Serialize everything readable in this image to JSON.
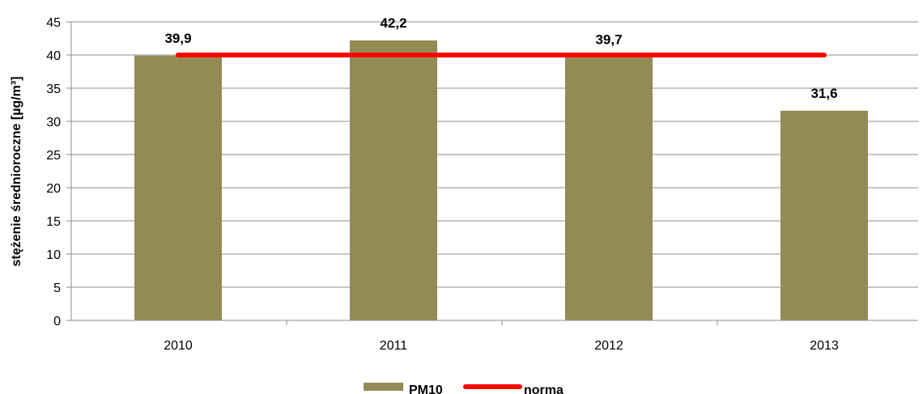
{
  "chart_data": {
    "type": "bar",
    "categories": [
      "2010",
      "2011",
      "2012",
      "2013"
    ],
    "series": [
      {
        "name": "PM10",
        "kind": "bar",
        "values": [
          39.9,
          42.2,
          39.7,
          31.6
        ],
        "color": "#948A54",
        "data_labels": [
          "39,9",
          "42,2",
          "39,7",
          "31,6"
        ]
      },
      {
        "name": "norma",
        "kind": "line",
        "values": [
          40,
          40,
          40,
          40
        ],
        "color": "#FF0000"
      }
    ],
    "ylabel": "stężenie średnioroczne [µg/m³]",
    "xlabel": "",
    "ylim": [
      0,
      45
    ],
    "yticks": [
      0,
      5,
      10,
      15,
      20,
      25,
      30,
      35,
      40,
      45
    ],
    "ytick_labels": [
      "0",
      "5",
      "10",
      "15",
      "20",
      "25",
      "30",
      "35",
      "40",
      "45"
    ],
    "grid": true,
    "legend_position": "bottom",
    "colors": {
      "grid": "#8C8C8C",
      "axis": "#8C8C8C"
    }
  }
}
